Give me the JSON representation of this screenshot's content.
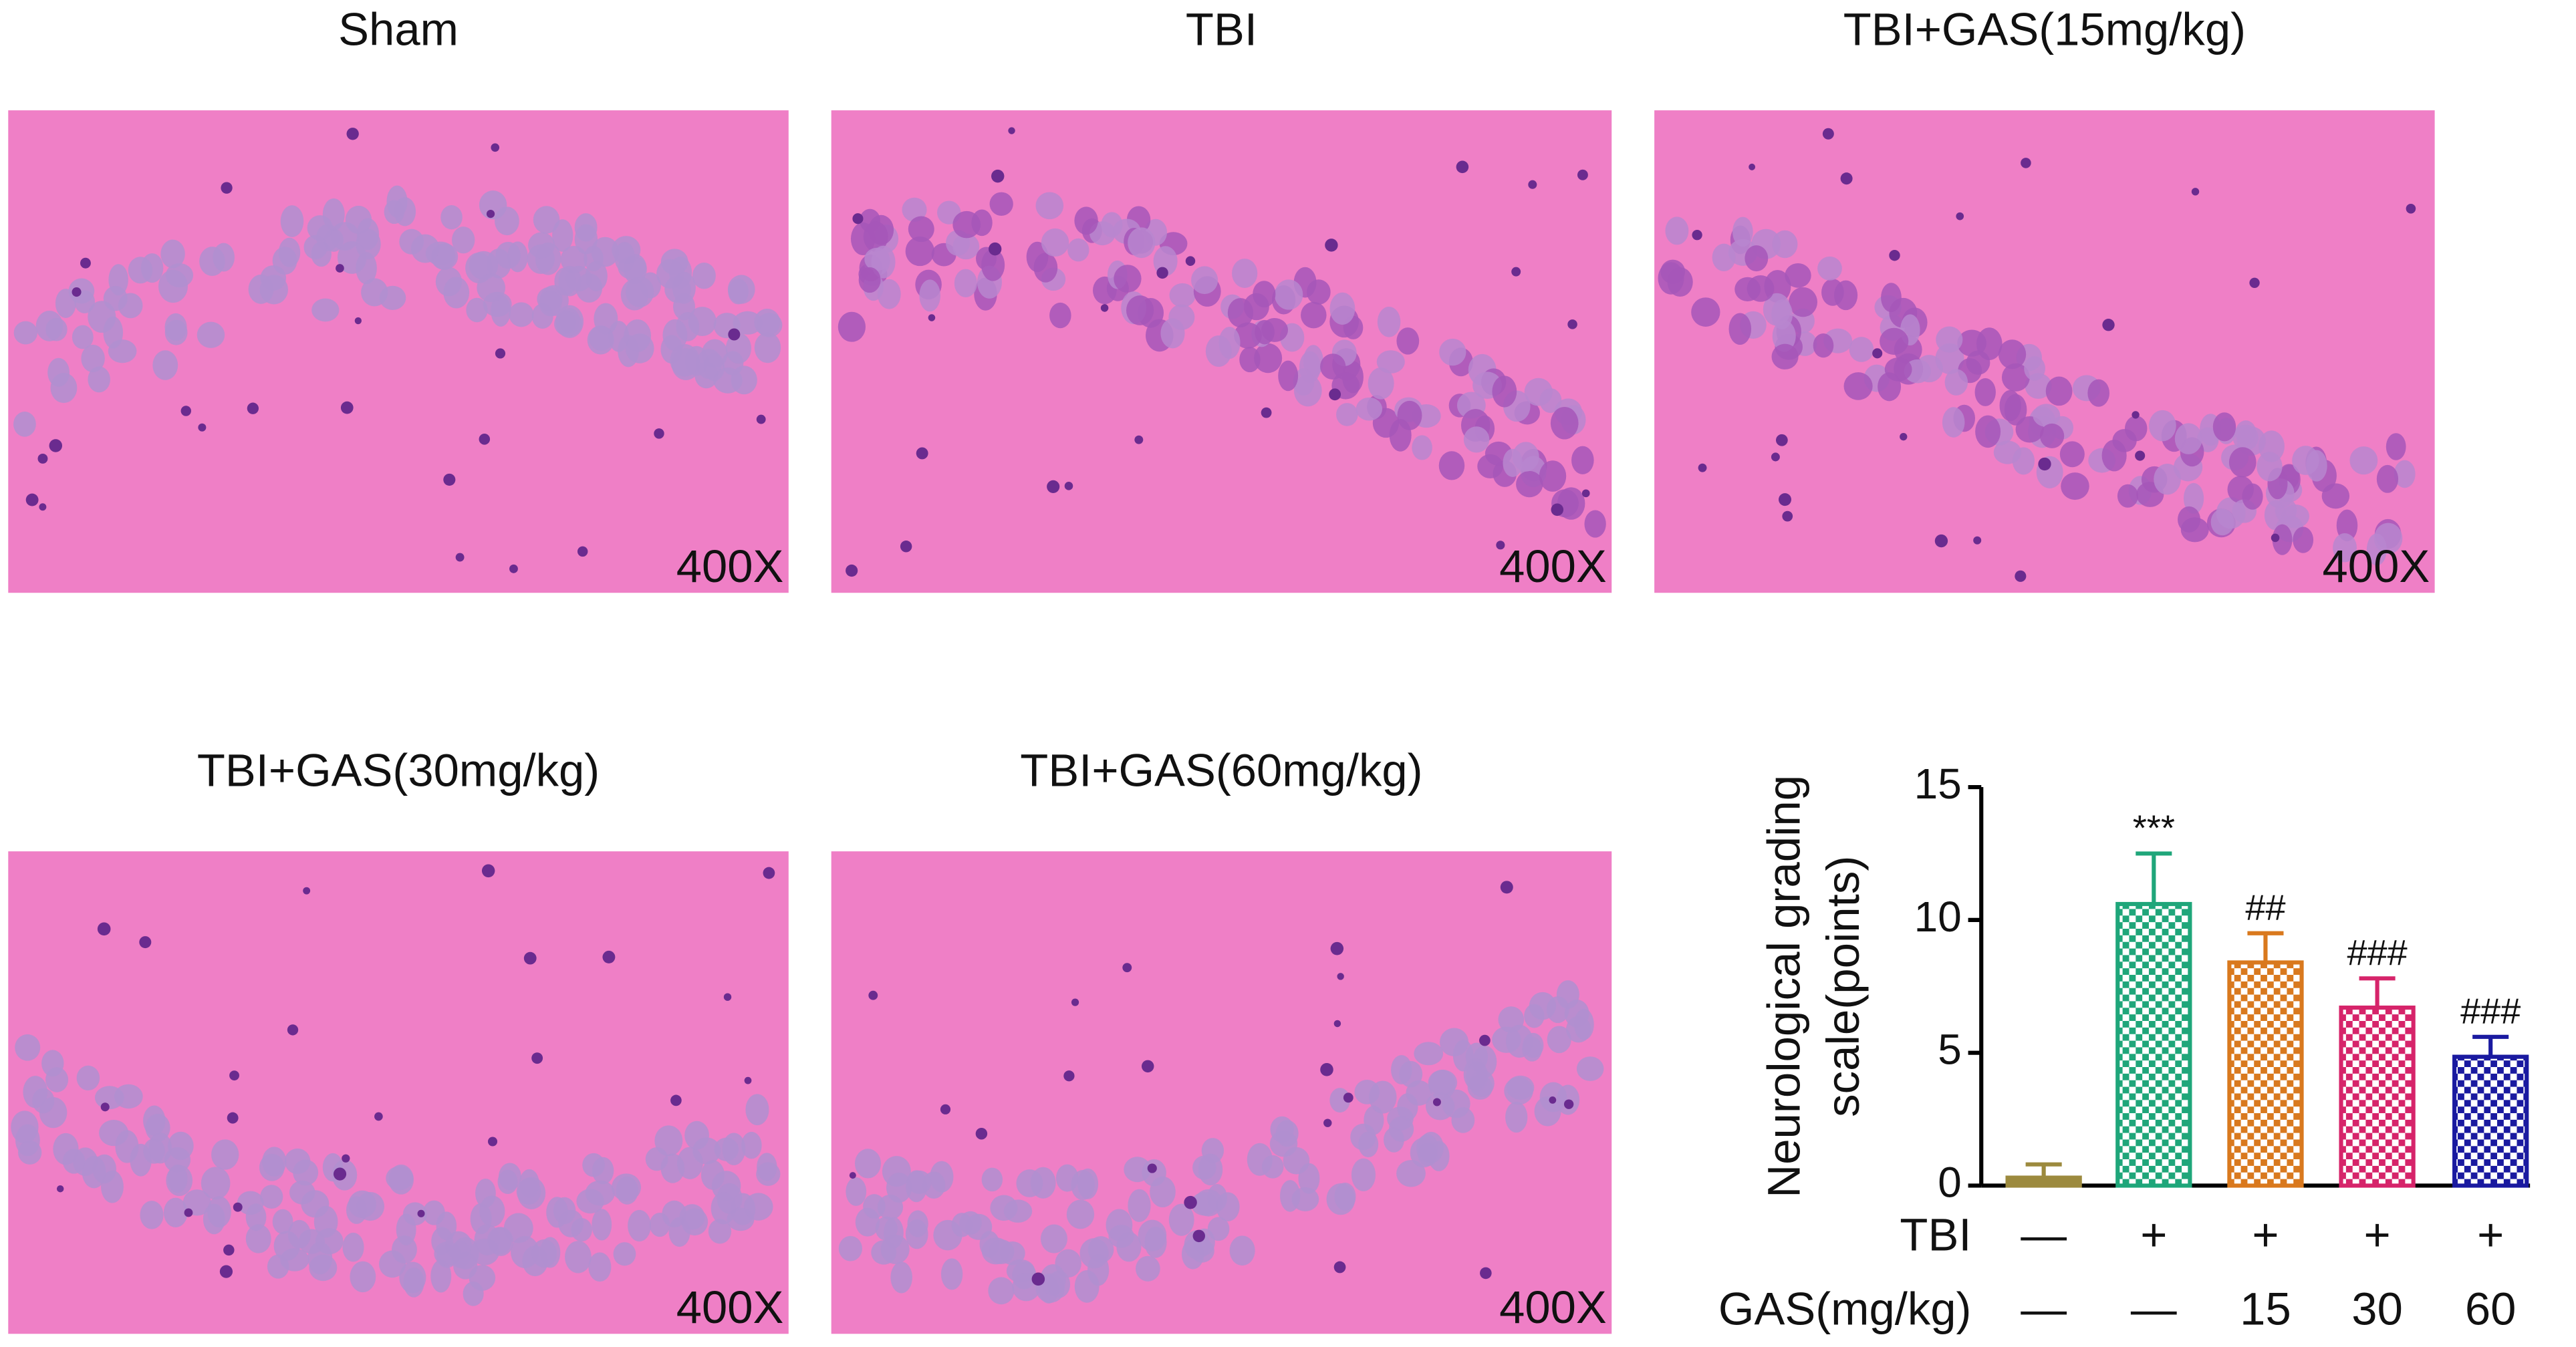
{
  "panels": [
    {
      "title": "Sham",
      "magnification": "400X"
    },
    {
      "title": "TBI",
      "magnification": "400X"
    },
    {
      "title": "TBI+GAS(15mg/kg)",
      "magnification": "400X"
    },
    {
      "title": "TBI+GAS(30mg/kg)",
      "magnification": "400X"
    },
    {
      "title": "TBI+GAS(60mg/kg)",
      "magnification": "400X"
    }
  ],
  "chart_data": {
    "type": "bar",
    "ylabel": [
      "Neurological grading",
      "scale(points)"
    ],
    "values": [
      0.3,
      10.6,
      8.4,
      6.7,
      4.85
    ],
    "errors": [
      0.5,
      1.9,
      1.1,
      1.1,
      0.75
    ],
    "colors": [
      "#9c8a3e",
      "#1fa67a",
      "#d9791e",
      "#d6246a",
      "#1a1aa0"
    ],
    "annotations": [
      null,
      "***",
      "##",
      "###",
      "###"
    ],
    "ylim": [
      0,
      15
    ],
    "yticks": [
      0,
      5,
      10,
      15
    ],
    "rows": [
      {
        "label": "TBI",
        "values": [
          "—",
          "+",
          "+",
          "+",
          "+"
        ]
      },
      {
        "label": "GAS(mg/kg)",
        "values": [
          "—",
          "—",
          "15",
          "30",
          "60"
        ]
      }
    ]
  }
}
